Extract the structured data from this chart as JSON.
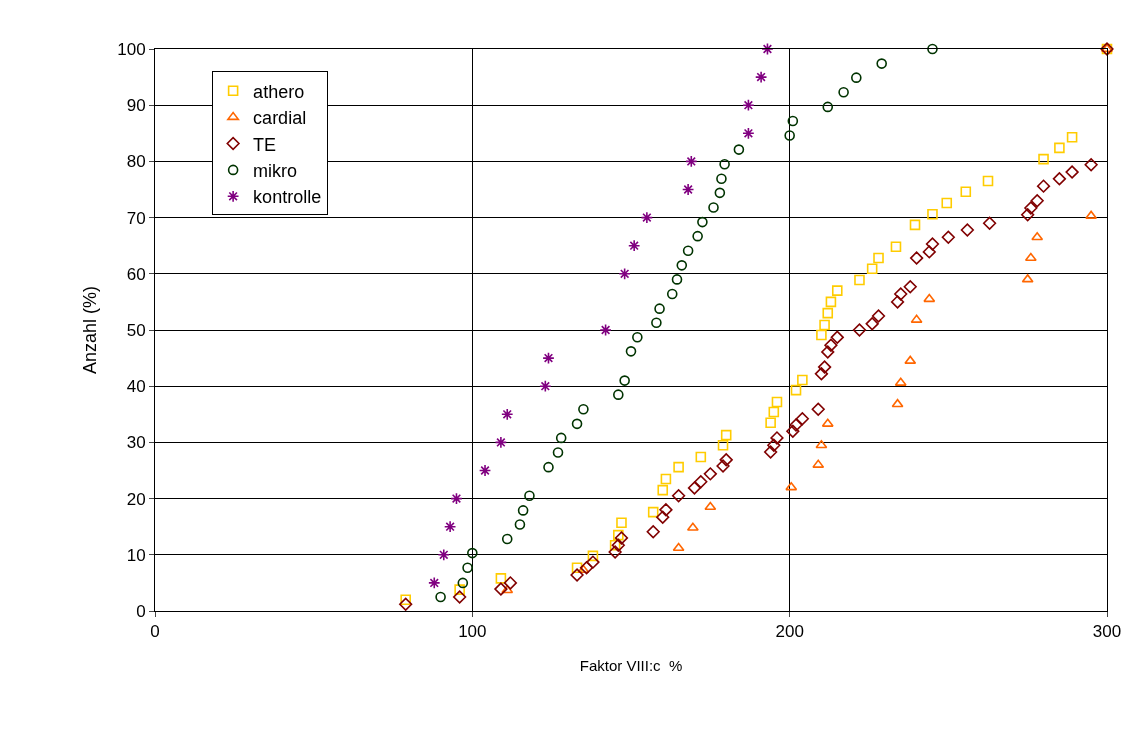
{
  "chart_data": {
    "type": "scatter",
    "xlabel": "Faktor VIII:c  %",
    "ylabel": "Anzahl (%)",
    "xlim": [
      0,
      300
    ],
    "ylim": [
      0,
      100
    ],
    "xticks": [
      0,
      100,
      200,
      300
    ],
    "yticks": [
      0,
      10,
      20,
      30,
      40,
      50,
      60,
      70,
      80,
      90,
      100
    ],
    "grid": true,
    "legend": "top left",
    "series": [
      {
        "name": "athero",
        "color": "#ffcc00",
        "marker": "square",
        "x": [
          79,
          96,
          109,
          133,
          138,
          145,
          146,
          147,
          157,
          160,
          161,
          165,
          172,
          179,
          180,
          194,
          195,
          196,
          202,
          204,
          210,
          211,
          212,
          213,
          215,
          222,
          226,
          228,
          233.5,
          239.5,
          245,
          249.5,
          255.5,
          262.5,
          280,
          285,
          289,
          300
        ],
        "values": [
          2,
          3.8,
          5.8,
          7.7,
          9.8,
          11.7,
          13.5,
          15.7,
          17.6,
          21.5,
          23.5,
          25.6,
          27.4,
          29.5,
          31.3,
          33.5,
          35.4,
          37.2,
          39.3,
          41.1,
          49.1,
          50.9,
          53,
          55,
          57,
          58.9,
          60.9,
          62.8,
          64.8,
          68.7,
          70.6,
          72.6,
          74.6,
          76.5,
          80.4,
          82.4,
          84.3,
          100
        ]
      },
      {
        "name": "cardial",
        "color": "#ff6600",
        "marker": "triangle",
        "x": [
          111,
          135,
          165,
          169.5,
          175,
          200.5,
          209,
          210,
          212,
          234,
          235,
          238,
          240,
          244,
          275,
          276,
          278,
          295,
          300
        ],
        "values": [
          3.7,
          7.3,
          11.2,
          14.8,
          18.5,
          22,
          26,
          29.5,
          33.3,
          36.8,
          40.6,
          44.5,
          51.8,
          55.5,
          59,
          62.8,
          66.5,
          70.3,
          100
        ]
      },
      {
        "name": "TE",
        "color": "#800000",
        "marker": "diamond",
        "x": [
          79,
          96,
          109,
          112,
          133,
          136,
          138,
          145,
          146,
          147,
          157,
          160,
          161,
          165,
          170,
          172,
          175,
          179,
          180,
          194,
          195,
          196,
          201,
          202,
          204,
          209,
          210,
          211,
          212,
          213,
          215,
          222,
          226,
          228,
          234,
          235,
          238,
          240,
          244,
          245,
          250,
          256,
          263,
          275,
          276,
          278,
          280,
          285,
          289,
          295,
          300
        ],
        "values": [
          1.2,
          2.5,
          3.9,
          5,
          6.4,
          7.7,
          8.7,
          10.5,
          11.7,
          13,
          14.1,
          16.7,
          18,
          20.5,
          21.9,
          23,
          24.4,
          25.8,
          26.9,
          28.3,
          29.5,
          30.8,
          32,
          33.1,
          34.2,
          35.9,
          42.2,
          43.4,
          46.1,
          47.3,
          48.7,
          50,
          51.1,
          52.5,
          55,
          56.4,
          57.7,
          62.8,
          63.9,
          65.3,
          66.5,
          67.8,
          69,
          70.5,
          71.7,
          73,
          75.6,
          76.9,
          78.1,
          79.4,
          100
        ]
      },
      {
        "name": "mikro",
        "color": "#003300",
        "marker": "circle",
        "x": [
          90,
          97,
          98.5,
          100,
          111,
          115,
          116,
          118,
          124,
          127,
          128,
          133,
          135,
          146,
          148,
          150,
          152,
          158,
          159,
          163,
          164.5,
          166,
          168,
          171,
          172.5,
          176,
          178,
          178.5,
          179.5,
          184,
          200,
          201,
          212,
          217,
          221,
          229,
          245
        ],
        "values": [
          2.5,
          5,
          7.7,
          10.3,
          12.8,
          15.4,
          17.9,
          20.5,
          25.6,
          28.2,
          30.8,
          33.3,
          35.9,
          38.5,
          41,
          46.2,
          48.7,
          51.3,
          53.8,
          56.4,
          59,
          61.5,
          64.1,
          66.7,
          69.2,
          71.8,
          74.4,
          76.9,
          79.5,
          82.1,
          84.6,
          87.2,
          89.7,
          92.3,
          94.9,
          97.4,
          100
        ]
      },
      {
        "name": "kontrolle",
        "color": "#800080",
        "marker": "cross",
        "x": [
          88,
          91,
          93,
          95,
          104,
          109,
          111,
          123,
          124,
          142,
          148,
          151,
          155,
          168,
          169,
          187,
          187,
          191,
          193
        ],
        "values": [
          5,
          10,
          15,
          20,
          25,
          30,
          35,
          40,
          45,
          50,
          60,
          65,
          70,
          75,
          80,
          85,
          90,
          95,
          100
        ]
      }
    ]
  }
}
